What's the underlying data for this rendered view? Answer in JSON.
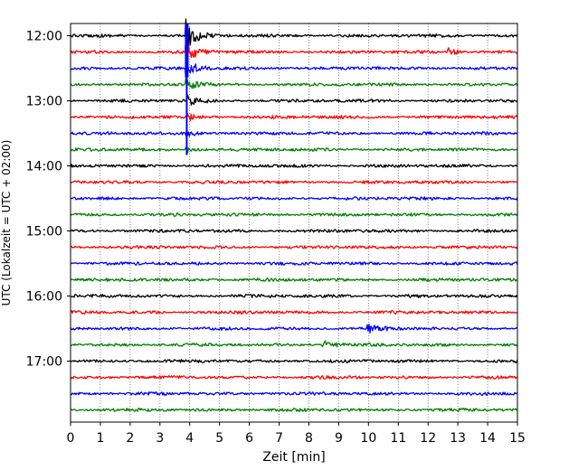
{
  "chart_data": {
    "type": "line",
    "subtype": "seismogram-helicorder",
    "xlabel": "Zeit  [min]",
    "ylabel": "UTC (Lokalzeit = UTC + 02:00)",
    "xlim": [
      0,
      15
    ],
    "x_ticks": [
      0,
      1,
      2,
      3,
      4,
      5,
      6,
      7,
      8,
      9,
      10,
      11,
      12,
      13,
      14,
      15
    ],
    "x_tick_labels": [
      "0",
      "1",
      "2",
      "3",
      "4",
      "5",
      "6",
      "7",
      "8",
      "9",
      "10",
      "11",
      "12",
      "13",
      "14",
      "15"
    ],
    "y_tick_labels": [
      "12:00",
      "13:00",
      "14:00",
      "15:00",
      "16:00",
      "17:00"
    ],
    "trace_interval_minutes": 15,
    "trace_count": 24,
    "trace_colors": [
      "#000000",
      "#ff0000",
      "#0000ff",
      "#008000"
    ],
    "grid": "vertical dotted lines at each minute",
    "events": [
      {
        "trace": 0,
        "time_min": 3.9,
        "amplitude": "very large (earthquake)"
      },
      {
        "trace": 1,
        "time_min": 3.9,
        "amplitude": "very large"
      },
      {
        "trace": 2,
        "time_min": 3.9,
        "amplitude": "very large (coda)"
      },
      {
        "trace": 3,
        "time_min": 3.9,
        "amplitude": "large (coda)"
      },
      {
        "trace": 4,
        "time_min": 3.9,
        "amplitude": "large (coda)"
      },
      {
        "trace": 5,
        "time_min": 3.9,
        "amplitude": "medium (coda)"
      },
      {
        "trace": 6,
        "time_min": 3.9,
        "amplitude": "medium (coda)"
      },
      {
        "trace": 7,
        "time_min": 3.9,
        "amplitude": "small (coda)"
      },
      {
        "trace": 1,
        "time_min": 12.7,
        "amplitude": "medium"
      },
      {
        "trace": 18,
        "time_min": 10.0,
        "amplitude": "small spike"
      },
      {
        "trace": 19,
        "time_min": 8.5,
        "amplitude": "small spike"
      }
    ]
  }
}
